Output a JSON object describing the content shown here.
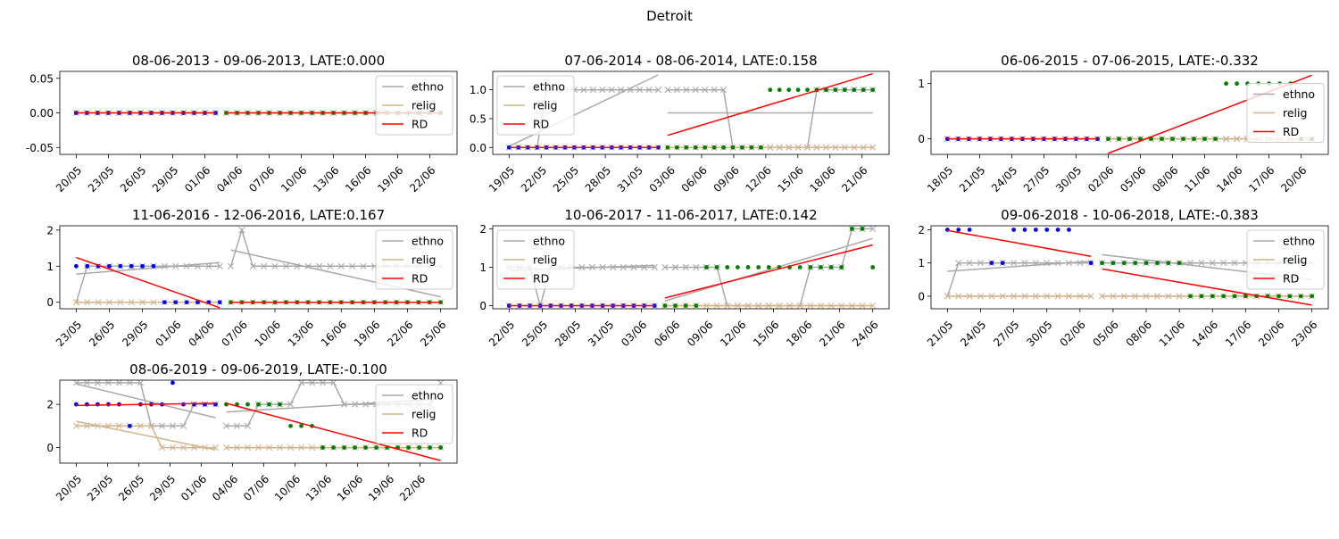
{
  "figure": {
    "suptitle": "Detroit"
  },
  "colors": {
    "pre_points": "#0000ff",
    "post_points": "#008000",
    "ethno": "#a9a9a9",
    "relig": "#d2b48c",
    "rd": "#ff0000"
  },
  "legend_labels": [
    "ethno",
    "relig",
    "RD"
  ],
  "chart_data": [
    {
      "type": "line",
      "title": "08-06-2013 - 09-06-2013, LATE:0.000",
      "xticks": [
        "20/05",
        "23/05",
        "26/05",
        "29/05",
        "01/06",
        "04/06",
        "07/06",
        "10/06",
        "13/06",
        "16/06",
        "19/06",
        "22/06"
      ],
      "first_date": "2013-05-20",
      "cutoff": "2013-06-03",
      "last_date": "2013-06-23",
      "ylim": [
        -0.06,
        0.06
      ],
      "yticks": [
        "-0.05",
        "0.00",
        "0.05"
      ],
      "ytick_values": [
        -0.05,
        0.0,
        0.05
      ],
      "legend_loc": "upper right",
      "ethno": [
        0,
        0,
        0,
        0,
        0,
        0,
        0,
        0,
        0,
        0,
        0,
        0,
        0,
        0,
        0,
        0,
        0,
        0,
        0,
        0,
        0,
        0,
        0,
        0,
        0,
        0,
        0,
        0,
        0,
        0,
        0,
        0,
        0,
        0,
        0
      ],
      "relig": [
        0,
        0,
        0,
        0,
        0,
        0,
        0,
        0,
        0,
        0,
        0,
        0,
        0,
        0,
        0,
        0,
        0,
        0,
        0,
        0,
        0,
        0,
        0,
        0,
        0,
        0,
        0,
        0,
        0,
        0,
        0,
        0,
        0,
        0,
        0
      ],
      "target": [
        0,
        0,
        0,
        0,
        0,
        0,
        0,
        0,
        0,
        0,
        0,
        0,
        0,
        0,
        0,
        0,
        0,
        0,
        0,
        0,
        0,
        0,
        0,
        0,
        0,
        0,
        0,
        0,
        0,
        0,
        0,
        0,
        0,
        0,
        0
      ],
      "rd_pre": [
        0,
        0
      ],
      "rd_post": [
        0,
        0
      ],
      "ethno_fit_pre": [
        0,
        0
      ],
      "ethno_fit_post": [
        0,
        0
      ],
      "relig_fit_pre": [
        0,
        0
      ],
      "relig_fit_post": [
        0,
        0
      ]
    },
    {
      "type": "line",
      "title": "07-06-2014 - 08-06-2014, LATE:0.158",
      "xticks": [
        "19/05",
        "22/05",
        "25/05",
        "28/05",
        "31/05",
        "03/06",
        "06/06",
        "09/06",
        "12/06",
        "15/06",
        "18/06",
        "21/06"
      ],
      "first_date": "2014-05-19",
      "cutoff": "2014-06-03",
      "last_date": "2014-06-22",
      "ylim": [
        -0.12,
        1.32
      ],
      "yticks": [
        "0.0",
        "0.5",
        "1.0"
      ],
      "ytick_values": [
        0.0,
        0.5,
        1.0
      ],
      "legend_loc": "upper left",
      "ethno": [
        0,
        0,
        0,
        0,
        1,
        1,
        1,
        1,
        1,
        1,
        1,
        1,
        1,
        1,
        1,
        1,
        1,
        1,
        1,
        1,
        1,
        1,
        1,
        1,
        0,
        0,
        0,
        0,
        0,
        0,
        0,
        0,
        0,
        1,
        1,
        1,
        1,
        1,
        1,
        1
      ],
      "relig": [
        0,
        0,
        0,
        0,
        0,
        0,
        0,
        0,
        0,
        0,
        0,
        0,
        0,
        0,
        0,
        0,
        0,
        0,
        0,
        0,
        0,
        0,
        0,
        0,
        0,
        0,
        0,
        0,
        0,
        0,
        0,
        0,
        0,
        0,
        0,
        0,
        0,
        0,
        0,
        0
      ],
      "target": [
        0,
        0,
        0,
        0,
        0,
        0,
        0,
        0,
        0,
        0,
        0,
        0,
        0,
        0,
        0,
        0,
        0,
        0,
        0,
        0,
        0,
        0,
        0,
        0,
        0,
        0,
        0,
        0,
        1,
        1,
        1,
        1,
        1,
        1,
        1,
        1,
        1,
        1,
        1,
        1
      ],
      "rd_pre": [
        0,
        0
      ],
      "rd_post": [
        0.21,
        1.28
      ],
      "ethno_fit_pre": [
        0.02,
        1.26
      ],
      "ethno_fit_post": [
        0.6,
        0.6
      ],
      "relig_fit_pre": [
        0,
        0
      ],
      "relig_fit_post": [
        0,
        0
      ]
    },
    {
      "type": "line",
      "title": "06-06-2015 - 07-06-2015, LATE:-0.332",
      "xticks": [
        "18/05",
        "21/05",
        "24/05",
        "27/05",
        "30/05",
        "02/06",
        "05/06",
        "08/06",
        "11/06",
        "14/06",
        "17/06",
        "20/06"
      ],
      "first_date": "2015-05-18",
      "cutoff": "2015-06-02",
      "last_date": "2015-06-21",
      "ylim": [
        -0.28,
        1.22
      ],
      "yticks": [
        "0",
        "1"
      ],
      "ytick_values": [
        0,
        1
      ],
      "legend_loc": "center right",
      "ethno": [
        0,
        0,
        0,
        0,
        0,
        0,
        0,
        0,
        0,
        0,
        0,
        0,
        0,
        0,
        0,
        0,
        0,
        0,
        0,
        0,
        0,
        0,
        0,
        0,
        0,
        0,
        0,
        0,
        0,
        0,
        0,
        0,
        0,
        0,
        0
      ],
      "relig": [
        0,
        0,
        0,
        0,
        0,
        0,
        0,
        0,
        0,
        0,
        0,
        0,
        0,
        0,
        0,
        0,
        0,
        0,
        0,
        0,
        0,
        0,
        0,
        0,
        0,
        0,
        0,
        0,
        0,
        0,
        0,
        0,
        0,
        0,
        0
      ],
      "target": [
        0,
        0,
        0,
        0,
        0,
        0,
        0,
        0,
        0,
        0,
        0,
        0,
        0,
        0,
        0,
        0,
        0,
        0,
        0,
        0,
        0,
        0,
        0,
        0,
        0,
        0,
        1,
        1,
        1,
        1,
        1,
        1,
        1,
        0,
        0
      ],
      "rd_pre": [
        0,
        0
      ],
      "rd_post": [
        -0.26,
        1.15
      ],
      "ethno_fit_pre": [
        0,
        0
      ],
      "ethno_fit_post": [
        0,
        0
      ],
      "relig_fit_pre": [
        0,
        0
      ],
      "relig_fit_post": [
        0,
        0
      ]
    },
    {
      "type": "line",
      "title": "11-06-2016 - 12-06-2016, LATE:0.167",
      "xticks": [
        "23/05",
        "26/05",
        "29/05",
        "01/06",
        "04/06",
        "07/06",
        "10/06",
        "13/06",
        "16/06",
        "19/06",
        "22/06",
        "25/06"
      ],
      "first_date": "2016-05-23",
      "cutoff": "2016-06-06",
      "last_date": "2016-06-25",
      "ylim": [
        -0.18,
        2.12
      ],
      "yticks": [
        "0",
        "1",
        "2"
      ],
      "ytick_values": [
        0,
        1,
        2
      ],
      "legend_loc": "upper right",
      "ethno": [
        0,
        1,
        1,
        1,
        1,
        1,
        1,
        1,
        1,
        1,
        1,
        1,
        1,
        1,
        1,
        2,
        1,
        1,
        1,
        1,
        1,
        1,
        1,
        1,
        1,
        1,
        1,
        1,
        1,
        1,
        1,
        1,
        1,
        1
      ],
      "relig": [
        0,
        0,
        0,
        0,
        0,
        0,
        0,
        0,
        0,
        0,
        0,
        0,
        0,
        0,
        0,
        0,
        0,
        0,
        0,
        0,
        0,
        0,
        0,
        0,
        0,
        0,
        0,
        0,
        0,
        0,
        0,
        0,
        0,
        0
      ],
      "target": [
        1,
        1,
        1,
        1,
        1,
        1,
        1,
        1,
        0,
        0,
        0,
        0,
        0,
        0,
        0,
        0,
        0,
        0,
        0,
        0,
        0,
        0,
        0,
        0,
        0,
        0,
        0,
        0,
        0,
        0,
        0,
        0,
        0,
        0
      ],
      "rd_pre": [
        1.24,
        -0.15
      ],
      "rd_post": [
        0,
        0
      ],
      "ethno_fit_pre": [
        0.78,
        1.1
      ],
      "ethno_fit_post": [
        1.45,
        0.15
      ],
      "relig_fit_pre": [
        0,
        0
      ],
      "relig_fit_post": [
        0,
        0
      ]
    },
    {
      "type": "line",
      "title": "10-06-2017 - 11-06-2017, LATE:0.142",
      "xticks": [
        "22/05",
        "25/05",
        "28/05",
        "31/05",
        "03/06",
        "06/06",
        "09/06",
        "12/06",
        "15/06",
        "18/06",
        "21/06",
        "24/06"
      ],
      "first_date": "2017-05-22",
      "cutoff": "2017-06-05",
      "last_date": "2017-06-24",
      "ylim": [
        -0.08,
        2.08
      ],
      "yticks": [
        "0",
        "1",
        "2"
      ],
      "ytick_values": [
        0,
        1,
        2
      ],
      "legend_loc": "upper left",
      "ethno": [
        1,
        1,
        1,
        0,
        1,
        1,
        1,
        1,
        1,
        1,
        1,
        1,
        1,
        1,
        1,
        1,
        1,
        1,
        1,
        1,
        1,
        0,
        0,
        0,
        0,
        0,
        0,
        0,
        0,
        1,
        1,
        1,
        1,
        2,
        2,
        2
      ],
      "relig": [
        0,
        0,
        0,
        0,
        0,
        0,
        0,
        0,
        0,
        0,
        0,
        0,
        0,
        0,
        0,
        0,
        0,
        0,
        0,
        0,
        0,
        0,
        0,
        0,
        0,
        0,
        0,
        0,
        0,
        0,
        0,
        0,
        0,
        0,
        0,
        0
      ],
      "target": [
        0,
        0,
        0,
        0,
        0,
        0,
        0,
        0,
        0,
        0,
        0,
        0,
        0,
        0,
        0,
        0,
        0,
        0,
        0,
        1,
        1,
        1,
        1,
        1,
        1,
        1,
        1,
        1,
        1,
        1,
        1,
        1,
        1,
        2,
        2,
        1
      ],
      "rd_pre": [
        0,
        0
      ],
      "rd_post": [
        0.2,
        1.58
      ],
      "ethno_fit_pre": [
        0.92,
        1.05
      ],
      "ethno_fit_post": [
        0.12,
        1.75
      ],
      "relig_fit_pre": [
        0,
        0
      ],
      "relig_fit_post": [
        0,
        0
      ]
    },
    {
      "type": "line",
      "title": "09-06-2018 - 10-06-2018, LATE:-0.383",
      "xticks": [
        "21/05",
        "24/05",
        "27/05",
        "30/05",
        "02/06",
        "05/06",
        "08/06",
        "11/06",
        "14/06",
        "17/06",
        "20/06",
        "23/06"
      ],
      "first_date": "2018-05-21",
      "cutoff": "2018-06-04",
      "last_date": "2018-06-23",
      "ylim": [
        -0.38,
        2.12
      ],
      "yticks": [
        "0",
        "1",
        "2"
      ],
      "ytick_values": [
        0,
        1,
        2
      ],
      "legend_loc": "upper right",
      "ethno": [
        0,
        1,
        1,
        1,
        1,
        1,
        1,
        1,
        1,
        1,
        1,
        1,
        1,
        1,
        1,
        1,
        1,
        1,
        1,
        1,
        1,
        1,
        1,
        1,
        1,
        1,
        1,
        1,
        1,
        1,
        1,
        1,
        1,
        1
      ],
      "relig": [
        0,
        0,
        0,
        0,
        0,
        0,
        0,
        0,
        0,
        0,
        0,
        0,
        0,
        0,
        0,
        0,
        0,
        0,
        0,
        0,
        0,
        0,
        0,
        0,
        0,
        0,
        0,
        0,
        0,
        0,
        0,
        0,
        0,
        0
      ],
      "target": [
        2,
        2,
        2,
        null,
        1,
        1,
        2,
        2,
        2,
        2,
        2,
        2,
        null,
        1,
        1,
        1,
        1,
        1,
        1,
        1,
        1,
        1,
        0,
        0,
        0,
        0,
        0,
        0,
        0,
        0,
        0,
        0,
        0,
        0
      ],
      "rd_pre": [
        1.98,
        1.2
      ],
      "rd_post": [
        0.82,
        -0.27
      ],
      "ethno_fit_pre": [
        0.75,
        1.05
      ],
      "ethno_fit_post": [
        1.25,
        0.5
      ],
      "relig_fit_pre": [
        0,
        0
      ],
      "relig_fit_post": [
        0,
        0
      ]
    },
    {
      "type": "line",
      "title": "08-06-2019 - 09-06-2019, LATE:-0.100",
      "xticks": [
        "20/05",
        "23/05",
        "26/05",
        "29/05",
        "01/06",
        "04/06",
        "07/06",
        "10/06",
        "13/06",
        "16/06",
        "19/06",
        "22/06"
      ],
      "first_date": "2019-05-20",
      "cutoff": "2019-06-03",
      "last_date": "2019-06-24",
      "ylim": [
        -0.72,
        3.12
      ],
      "yticks": [
        "0",
        "2"
      ],
      "ytick_values": [
        0,
        2
      ],
      "legend_loc": "upper right",
      "ethno": [
        3,
        3,
        3,
        3,
        3,
        3,
        3,
        1,
        1,
        1,
        1,
        2,
        2,
        2,
        1,
        1,
        1,
        2,
        2,
        2,
        2,
        3,
        3,
        3,
        3,
        2,
        2,
        2,
        2,
        2,
        2,
        2,
        2,
        2,
        3
      ],
      "relig": [
        1,
        1,
        1,
        1,
        1,
        1,
        1,
        1,
        0,
        0,
        0,
        0,
        0,
        0,
        0,
        0,
        0,
        0,
        0,
        0,
        0,
        0,
        0,
        0,
        0,
        0,
        0,
        0,
        0,
        0,
        0,
        0,
        0,
        0,
        0
      ],
      "target": [
        2,
        2,
        2,
        2,
        2,
        1,
        2,
        2,
        2,
        3,
        2,
        2,
        2,
        2,
        2,
        2,
        2,
        2,
        2,
        2,
        1,
        1,
        1,
        0,
        0,
        0,
        0,
        0,
        0,
        0,
        0,
        0,
        0,
        0,
        0
      ],
      "rd_pre": [
        1.95,
        2.05
      ],
      "rd_post": [
        2.05,
        -0.6
      ],
      "ethno_fit_pre": [
        2.95,
        1.38
      ],
      "ethno_fit_post": [
        1.65,
        2.25
      ],
      "relig_fit_pre": [
        1.22,
        -0.1
      ],
      "relig_fit_post": [
        0,
        0
      ]
    }
  ]
}
